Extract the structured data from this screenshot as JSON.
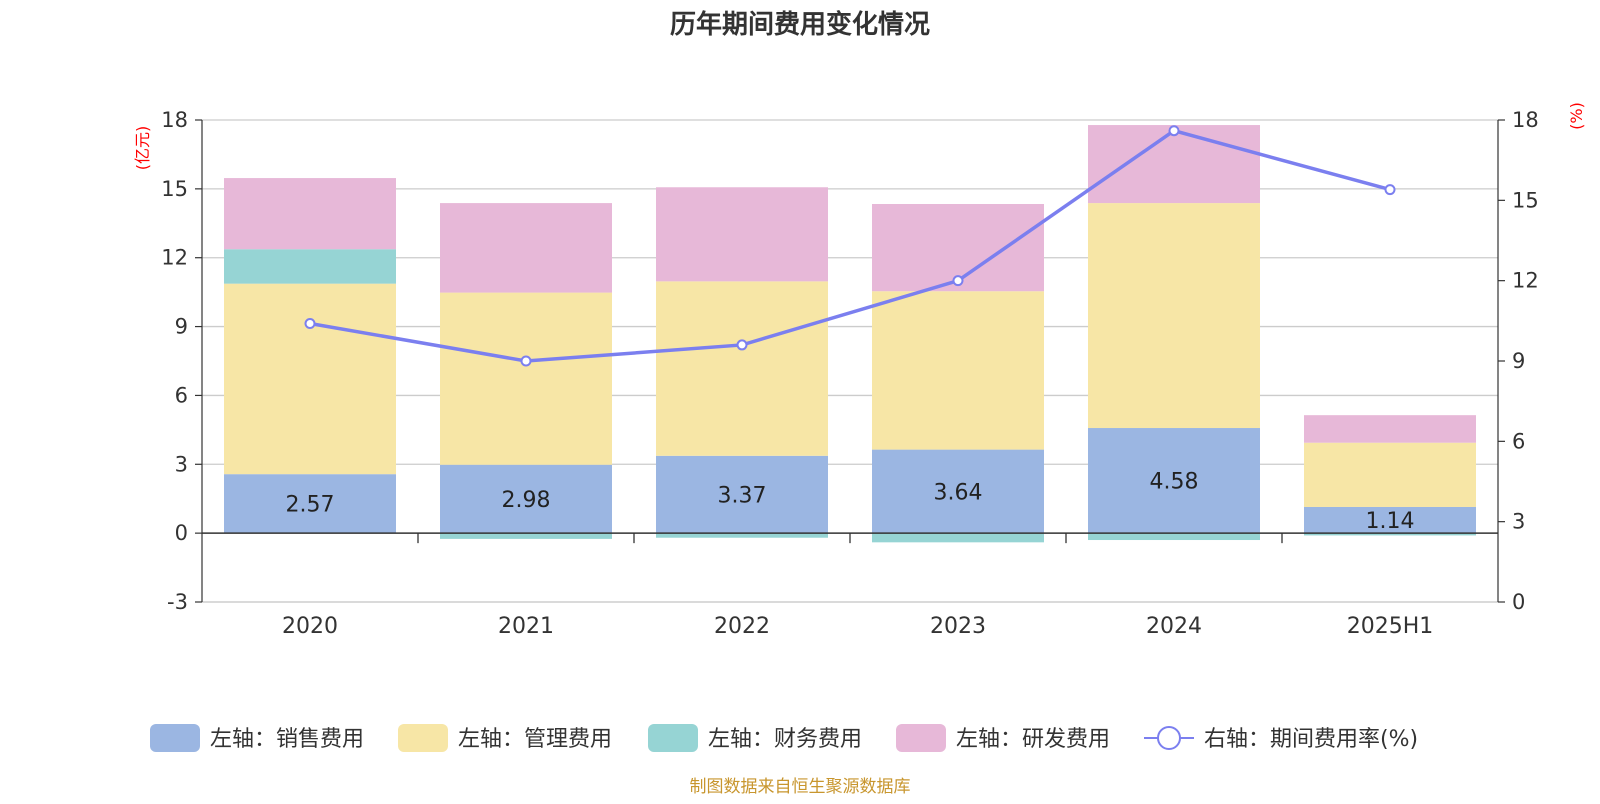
{
  "chart_data": {
    "type": "bar",
    "title": "历年期间费用变化情况",
    "left_unit": "(亿元)",
    "right_unit": "(%)",
    "categories": [
      "2020",
      "2021",
      "2022",
      "2023",
      "2024",
      "2025H1"
    ],
    "left_axis": {
      "min": -3,
      "max": 18,
      "ticks": [
        -3,
        0,
        3,
        6,
        9,
        12,
        15,
        18
      ]
    },
    "right_axis": {
      "min": 0,
      "max": 18,
      "ticks": [
        0,
        3,
        6,
        9,
        12,
        15,
        18
      ]
    },
    "grid": true,
    "legend_position": "bottom",
    "series": [
      {
        "name": "左轴：销售费用",
        "type": "bar",
        "axis": "left",
        "color": "#9bb6e2",
        "values": [
          2.57,
          2.98,
          3.37,
          3.64,
          4.58,
          1.14
        ],
        "show_labels": true
      },
      {
        "name": "左轴：管理费用",
        "type": "bar",
        "axis": "left",
        "color": "#f7e6a6",
        "values": [
          8.3,
          7.5,
          7.6,
          6.9,
          9.8,
          2.8
        ],
        "show_labels": false
      },
      {
        "name": "左轴：财务费用",
        "type": "bar",
        "axis": "left",
        "color": "#96d4d4",
        "values": [
          1.5,
          -0.25,
          -0.2,
          -0.4,
          -0.3,
          -0.1
        ],
        "show_labels": false
      },
      {
        "name": "左轴：研发费用",
        "type": "bar",
        "axis": "left",
        "color": "#e7b8d8",
        "values": [
          3.1,
          3.9,
          4.1,
          3.8,
          3.4,
          1.2
        ],
        "show_labels": false
      },
      {
        "name": "右轴：期间费用率(%)",
        "type": "line",
        "axis": "right",
        "color": "#7b7fef",
        "values": [
          10.4,
          9.0,
          9.6,
          12.0,
          17.6,
          15.4
        ],
        "show_labels": false
      }
    ],
    "source": "制图数据来自恒生聚源数据库"
  }
}
